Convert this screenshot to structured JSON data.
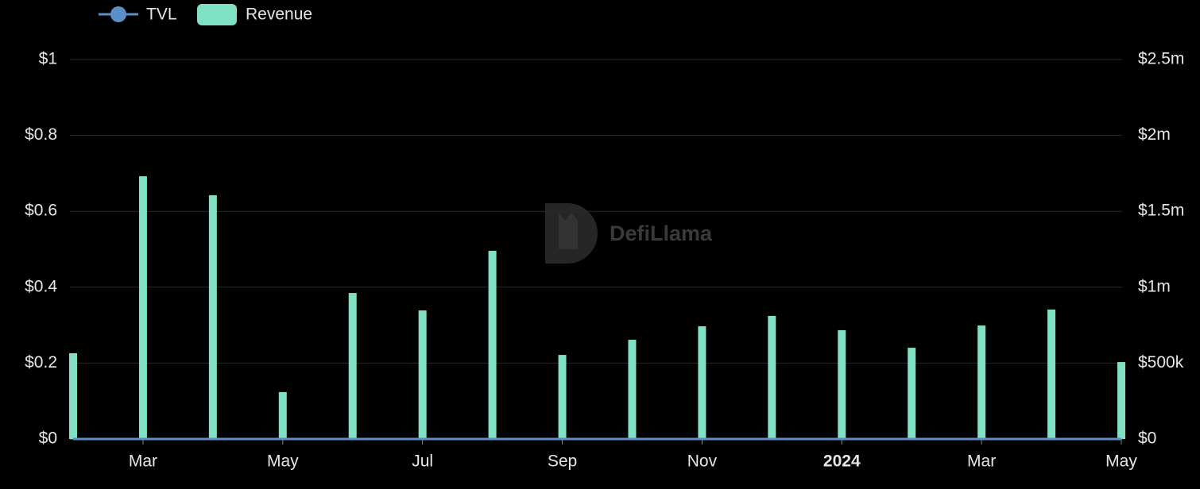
{
  "chart_data": {
    "type": "bar-line",
    "categories": [
      null,
      "Mar",
      null,
      "May",
      null,
      "Jul",
      null,
      "Sep",
      null,
      "Nov",
      null,
      "2024",
      null,
      "Mar",
      null,
      "May"
    ],
    "series": [
      {
        "name": "TVL",
        "type": "line",
        "axis": "y",
        "color": "#5b8fc9",
        "values": [
          0,
          0,
          0,
          0,
          0,
          0,
          0,
          0,
          0,
          0,
          0,
          0,
          0,
          0,
          0,
          0
        ]
      },
      {
        "name": "Revenue",
        "type": "bar",
        "axis": "y2",
        "color": "#7fe0c4",
        "values": [
          565000,
          1731000,
          1606000,
          309000,
          962000,
          847000,
          1240000,
          554000,
          654000,
          743000,
          811000,
          717000,
          601000,
          748000,
          853000,
          507000
        ]
      }
    ],
    "ylim": [
      0,
      1
    ],
    "yticks": [
      {
        "value": 0,
        "label": "$0"
      },
      {
        "value": 0.2,
        "label": "$0.2"
      },
      {
        "value": 0.4,
        "label": "$0.4"
      },
      {
        "value": 0.6,
        "label": "$0.6"
      },
      {
        "value": 0.8,
        "label": "$0.8"
      },
      {
        "value": 1,
        "label": "$1"
      }
    ],
    "y2lim": [
      0,
      2500000
    ],
    "y2ticks": [
      {
        "value": 0,
        "label": "$0"
      },
      {
        "value": 500000,
        "label": "$500k"
      },
      {
        "value": 1000000,
        "label": "$1m"
      },
      {
        "value": 1500000,
        "label": "$1.5m"
      },
      {
        "value": 2000000,
        "label": "$2m"
      },
      {
        "value": 2500000,
        "label": "$2.5m"
      }
    ],
    "grid": true,
    "legend": "top-left",
    "watermark": "DefiLlama"
  }
}
